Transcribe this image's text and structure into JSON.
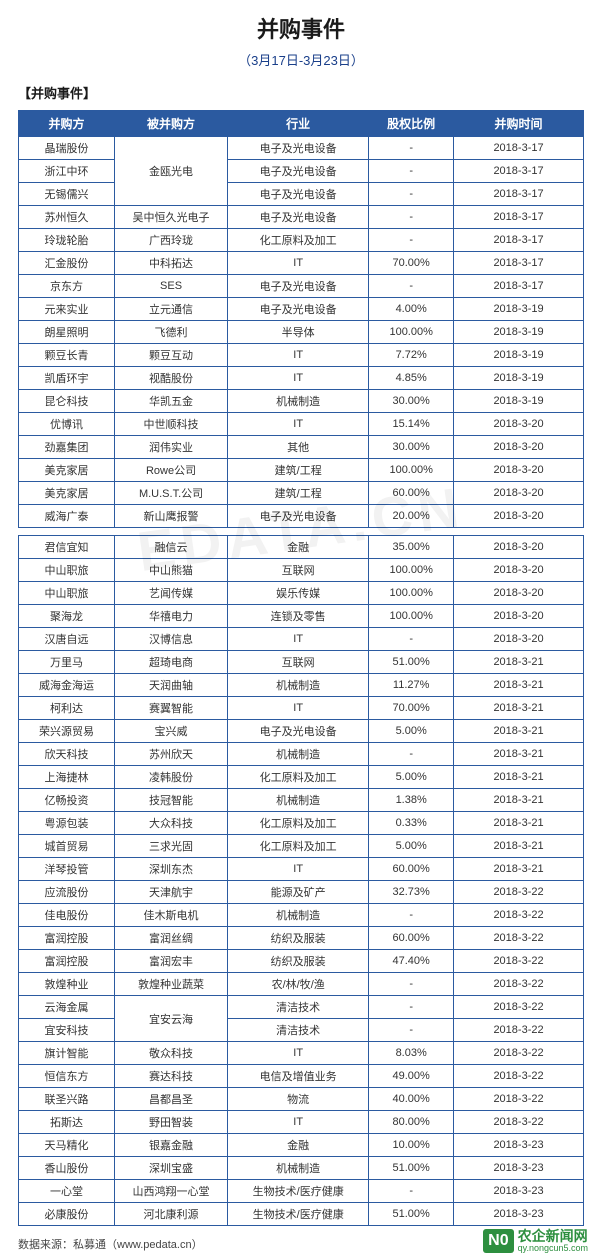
{
  "title": "并购事件",
  "subtitle": "（3月17日-3月23日）",
  "section_label": "【并购事件】",
  "columns": [
    "并购方",
    "被并购方",
    "行业",
    "股权比例",
    "并购时间"
  ],
  "col_widths": [
    "17%",
    "20%",
    "25%",
    "15%",
    "23%"
  ],
  "header_bg": "#2b5aa0",
  "header_fg": "#ffffff",
  "border_color": "#2b5aa0",
  "title_color": "#1a1a1a",
  "subtitle_color": "#1a3f8a",
  "cell_font_size": 11,
  "watermark_text": "EDATA.CN",
  "logo": {
    "badge": "N0",
    "cn": "农企新闻网",
    "url": "qy.nongcun5.com"
  },
  "footer": "数据来源：私募通（www.pedata.cn）",
  "rows1": [
    {
      "acq": "晶瑞股份",
      "tgt": "",
      "ind": "电子及光电设备",
      "pct": "-",
      "date": "2018-3-17",
      "rowspan_tgt": 3,
      "tgt_merged": "金瓯光电"
    },
    {
      "acq": "浙江中环",
      "tgt": null,
      "ind": "电子及光电设备",
      "pct": "-",
      "date": "2018-3-17"
    },
    {
      "acq": "无锡儒兴",
      "tgt": null,
      "ind": "电子及光电设备",
      "pct": "-",
      "date": "2018-3-17"
    },
    {
      "acq": "苏州恒久",
      "tgt": "吴中恒久光电子",
      "ind": "电子及光电设备",
      "pct": "-",
      "date": "2018-3-17"
    },
    {
      "acq": "玲珑轮胎",
      "tgt": "广西玲珑",
      "ind": "化工原料及加工",
      "pct": "-",
      "date": "2018-3-17"
    },
    {
      "acq": "汇金股份",
      "tgt": "中科拓达",
      "ind": "IT",
      "pct": "70.00%",
      "date": "2018-3-17"
    },
    {
      "acq": "京东方",
      "tgt": "SES",
      "ind": "电子及光电设备",
      "pct": "-",
      "date": "2018-3-17"
    },
    {
      "acq": "元来实业",
      "tgt": "立元通信",
      "ind": "电子及光电设备",
      "pct": "4.00%",
      "date": "2018-3-19"
    },
    {
      "acq": "朗星照明",
      "tgt": "飞德利",
      "ind": "半导体",
      "pct": "100.00%",
      "date": "2018-3-19"
    },
    {
      "acq": "颗豆长青",
      "tgt": "颗豆互动",
      "ind": "IT",
      "pct": "7.72%",
      "date": "2018-3-19"
    },
    {
      "acq": "凯盾环宇",
      "tgt": "视酷股份",
      "ind": "IT",
      "pct": "4.85%",
      "date": "2018-3-19"
    },
    {
      "acq": "昆仑科技",
      "tgt": "华凯五金",
      "ind": "机械制造",
      "pct": "30.00%",
      "date": "2018-3-19"
    },
    {
      "acq": "优博讯",
      "tgt": "中世顺科技",
      "ind": "IT",
      "pct": "15.14%",
      "date": "2018-3-20"
    },
    {
      "acq": "劲嘉集团",
      "tgt": "润伟实业",
      "ind": "其他",
      "pct": "30.00%",
      "date": "2018-3-20"
    },
    {
      "acq": "美克家居",
      "tgt": "Rowe公司",
      "ind": "建筑/工程",
      "pct": "100.00%",
      "date": "2018-3-20"
    },
    {
      "acq": "美克家居",
      "tgt": "M.U.S.T.公司",
      "ind": "建筑/工程",
      "pct": "60.00%",
      "date": "2018-3-20"
    },
    {
      "acq": "威海广泰",
      "tgt": "新山鹰报警",
      "ind": "电子及光电设备",
      "pct": "20.00%",
      "date": "2018-3-20"
    }
  ],
  "rows2": [
    {
      "acq": "君信宜知",
      "tgt": "融信云",
      "ind": "金融",
      "pct": "35.00%",
      "date": "2018-3-20"
    },
    {
      "acq": "中山职旅",
      "tgt": "中山熊猫",
      "ind": "互联网",
      "pct": "100.00%",
      "date": "2018-3-20"
    },
    {
      "acq": "中山职旅",
      "tgt": "艺闻传媒",
      "ind": "娱乐传媒",
      "pct": "100.00%",
      "date": "2018-3-20"
    },
    {
      "acq": "聚海龙",
      "tgt": "华禧电力",
      "ind": "连锁及零售",
      "pct": "100.00%",
      "date": "2018-3-20"
    },
    {
      "acq": "汉唐自远",
      "tgt": "汉博信息",
      "ind": "IT",
      "pct": "-",
      "date": "2018-3-20"
    },
    {
      "acq": "万里马",
      "tgt": "超琦电商",
      "ind": "互联网",
      "pct": "51.00%",
      "date": "2018-3-21"
    },
    {
      "acq": "威海金海运",
      "tgt": "天润曲轴",
      "ind": "机械制造",
      "pct": "11.27%",
      "date": "2018-3-21"
    },
    {
      "acq": "柯利达",
      "tgt": "赛翼智能",
      "ind": "IT",
      "pct": "70.00%",
      "date": "2018-3-21"
    },
    {
      "acq": "荣兴源贸易",
      "tgt": "宝兴威",
      "ind": "电子及光电设备",
      "pct": "5.00%",
      "date": "2018-3-21"
    },
    {
      "acq": "欣天科技",
      "tgt": "苏州欣天",
      "ind": "机械制造",
      "pct": "-",
      "date": "2018-3-21"
    },
    {
      "acq": "上海捷林",
      "tgt": "凌韩股份",
      "ind": "化工原料及加工",
      "pct": "5.00%",
      "date": "2018-3-21"
    },
    {
      "acq": "亿畅投资",
      "tgt": "技冠智能",
      "ind": "机械制造",
      "pct": "1.38%",
      "date": "2018-3-21"
    },
    {
      "acq": "粤源包装",
      "tgt": "大众科技",
      "ind": "化工原料及加工",
      "pct": "0.33%",
      "date": "2018-3-21"
    },
    {
      "acq": "城首贸易",
      "tgt": "三求光固",
      "ind": "化工原料及加工",
      "pct": "5.00%",
      "date": "2018-3-21"
    },
    {
      "acq": "洋琴投管",
      "tgt": "深圳东杰",
      "ind": "IT",
      "pct": "60.00%",
      "date": "2018-3-21"
    },
    {
      "acq": "应流股份",
      "tgt": "天津航宇",
      "ind": "能源及矿产",
      "pct": "32.73%",
      "date": "2018-3-22"
    },
    {
      "acq": "佳电股份",
      "tgt": "佳木斯电机",
      "ind": "机械制造",
      "pct": "-",
      "date": "2018-3-22"
    },
    {
      "acq": "富润控股",
      "tgt": "富润丝绸",
      "ind": "纺织及服装",
      "pct": "60.00%",
      "date": "2018-3-22"
    },
    {
      "acq": "富润控股",
      "tgt": "富润宏丰",
      "ind": "纺织及服装",
      "pct": "47.40%",
      "date": "2018-3-22"
    },
    {
      "acq": "敦煌种业",
      "tgt": "敦煌种业蔬菜",
      "ind": "农/林/牧/渔",
      "pct": "-",
      "date": "2018-3-22"
    },
    {
      "acq": "云海金属",
      "tgt": "",
      "ind": "清洁技术",
      "pct": "-",
      "date": "2018-3-22",
      "rowspan_tgt": 2,
      "tgt_merged": "宜安云海"
    },
    {
      "acq": "宜安科技",
      "tgt": null,
      "ind": "清洁技术",
      "pct": "-",
      "date": "2018-3-22"
    },
    {
      "acq": "旗计智能",
      "tgt": "敬众科技",
      "ind": "IT",
      "pct": "8.03%",
      "date": "2018-3-22"
    },
    {
      "acq": "恒信东方",
      "tgt": "赛达科技",
      "ind": "电信及增值业务",
      "pct": "49.00%",
      "date": "2018-3-22"
    },
    {
      "acq": "联圣兴路",
      "tgt": "昌都昌圣",
      "ind": "物流",
      "pct": "40.00%",
      "date": "2018-3-22"
    },
    {
      "acq": "拓斯达",
      "tgt": "野田智装",
      "ind": "IT",
      "pct": "80.00%",
      "date": "2018-3-22"
    },
    {
      "acq": "天马精化",
      "tgt": "银嘉金融",
      "ind": "金融",
      "pct": "10.00%",
      "date": "2018-3-23"
    },
    {
      "acq": "香山股份",
      "tgt": "深圳宝盛",
      "ind": "机械制造",
      "pct": "51.00%",
      "date": "2018-3-23"
    },
    {
      "acq": "一心堂",
      "tgt": "山西鸿翔一心堂",
      "ind": "生物技术/医疗健康",
      "pct": "-",
      "date": "2018-3-23"
    },
    {
      "acq": "必康股份",
      "tgt": "河北康利源",
      "ind": "生物技术/医疗健康",
      "pct": "51.00%",
      "date": "2018-3-23"
    }
  ]
}
